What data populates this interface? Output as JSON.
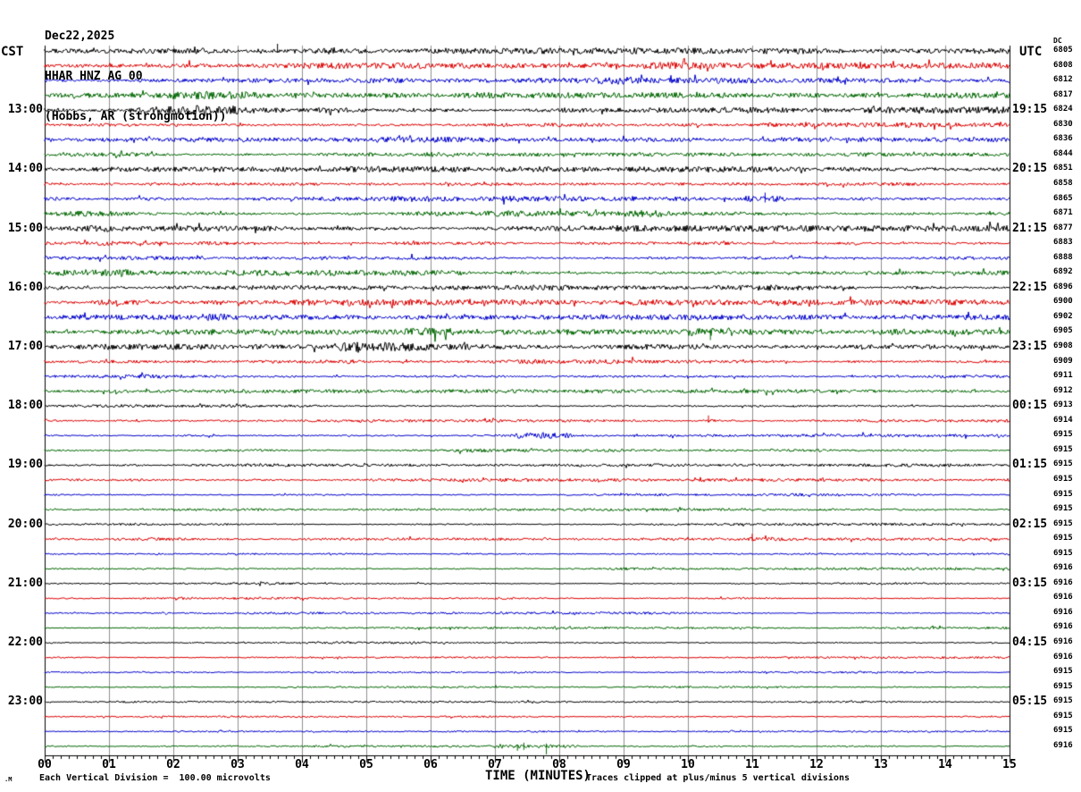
{
  "header": {
    "date": "Dec22,2025",
    "station": "HHAR HNZ AG 00",
    "location": "(Hobbs, AR (strongmotion))"
  },
  "axes": {
    "left_label": "CST",
    "right_label": "UTC",
    "dc_label": "DC",
    "left_hours": [
      "13:00",
      "14:00",
      "15:00",
      "16:00",
      "17:00",
      "18:00",
      "19:00",
      "20:00",
      "21:00",
      "22:00",
      "23:00"
    ],
    "right_times": [
      "19:15",
      "20:15",
      "21:15",
      "22:15",
      "23:15",
      "00:15",
      "01:15",
      "02:15",
      "03:15",
      "04:15",
      "05:15"
    ],
    "x_ticks": [
      "00",
      "01",
      "02",
      "03",
      "04",
      "05",
      "06",
      "07",
      "08",
      "09",
      "10",
      "11",
      "12",
      "13",
      "14",
      "15"
    ],
    "x_title": "TIME (MINUTES)"
  },
  "footer": {
    "scale_note": "Each Vertical Division =  100.00 microvolts",
    "clip_note": "Traces clipped at plus/minus 5 vertical divisions",
    "watermark": ".M"
  },
  "colors": {
    "black": "#000000",
    "red": "#dd0000",
    "blue": "#0000cc",
    "green": "#006600",
    "grid": "#909090",
    "frame": "#000000"
  },
  "chart_data": {
    "type": "line",
    "subtype": "seismogram-helicorder",
    "x_unit": "minutes",
    "x_range": [
      0,
      15
    ],
    "minutes_per_row": 15,
    "rows_per_hour": 4,
    "first_row_cst": "12:00",
    "grid": "vertical-every-minute",
    "rows": [
      {
        "cst": "12:00",
        "color": "black",
        "count": 6805,
        "noise": 2.0,
        "events": [
          [
            3.3,
            4.5,
            1.6
          ]
        ],
        "spikes": [
          {
            "m": 3.62,
            "up": 8,
            "down": 2
          }
        ]
      },
      {
        "cst": "12:15",
        "color": "red",
        "count": 6808,
        "noise": 1.9,
        "events": [
          [
            1.5,
            2.6,
            1.3
          ],
          [
            9.3,
            10.2,
            1.3
          ]
        ],
        "spikes": []
      },
      {
        "cst": "12:30",
        "color": "blue",
        "count": 6812,
        "noise": 1.8,
        "events": [
          [
            0.8,
            2.2,
            1.3
          ],
          [
            8.6,
            9.2,
            1.4
          ]
        ],
        "spikes": []
      },
      {
        "cst": "12:45",
        "color": "green",
        "count": 6817,
        "noise": 1.9,
        "events": [
          [
            2.0,
            3.4,
            1.4
          ]
        ],
        "spikes": []
      },
      {
        "cst": "13:00",
        "color": "black",
        "count": 6824,
        "noise": 2.2,
        "events": [
          [
            1.3,
            3.0,
            2.0
          ]
        ],
        "spikes": []
      },
      {
        "cst": "13:15",
        "color": "red",
        "count": 6830,
        "noise": 1.9,
        "events": [],
        "spikes": []
      },
      {
        "cst": "13:30",
        "color": "blue",
        "count": 6836,
        "noise": 1.8,
        "events": [
          [
            11.2,
            11.8,
            1.3
          ]
        ],
        "spikes": []
      },
      {
        "cst": "13:45",
        "color": "green",
        "count": 6844,
        "noise": 1.9,
        "events": [
          [
            5.9,
            6.4,
            1.5
          ]
        ],
        "spikes": []
      },
      {
        "cst": "14:00",
        "color": "black",
        "count": 6851,
        "noise": 1.9,
        "events": [],
        "spikes": []
      },
      {
        "cst": "14:15",
        "color": "red",
        "count": 6858,
        "noise": 1.9,
        "events": [
          [
            6.3,
            6.8,
            1.3
          ]
        ],
        "spikes": []
      },
      {
        "cst": "14:30",
        "color": "blue",
        "count": 6865,
        "noise": 1.8,
        "events": [
          [
            10.9,
            11.5,
            1.8
          ]
        ],
        "spikes": [
          {
            "m": 11.2,
            "up": 7,
            "down": 4
          }
        ]
      },
      {
        "cst": "14:45",
        "color": "green",
        "count": 6871,
        "noise": 2.0,
        "events": [
          [
            0.1,
            1.2,
            1.4
          ],
          [
            9.0,
            9.6,
            1.3
          ]
        ],
        "spikes": []
      },
      {
        "cst": "15:00",
        "color": "black",
        "count": 6877,
        "noise": 2.0,
        "events": [
          [
            0.2,
            1.1,
            1.4
          ]
        ],
        "spikes": []
      },
      {
        "cst": "15:15",
        "color": "red",
        "count": 6883,
        "noise": 1.8,
        "events": [],
        "spikes": []
      },
      {
        "cst": "15:30",
        "color": "blue",
        "count": 6888,
        "noise": 1.7,
        "events": [],
        "spikes": []
      },
      {
        "cst": "15:45",
        "color": "green",
        "count": 6892,
        "noise": 1.9,
        "events": [
          [
            0.2,
            1.3,
            1.5
          ]
        ],
        "spikes": []
      },
      {
        "cst": "16:00",
        "color": "black",
        "count": 6896,
        "noise": 1.8,
        "events": [],
        "spikes": []
      },
      {
        "cst": "16:15",
        "color": "red",
        "count": 6900,
        "noise": 1.9,
        "events": [
          [
            0.7,
            1.6,
            1.7
          ]
        ],
        "spikes": []
      },
      {
        "cst": "16:30",
        "color": "blue",
        "count": 6902,
        "noise": 1.7,
        "events": [
          [
            2.4,
            2.9,
            1.3
          ]
        ],
        "spikes": []
      },
      {
        "cst": "16:45",
        "color": "green",
        "count": 6905,
        "noise": 1.8,
        "events": [
          [
            5.6,
            6.4,
            1.7
          ],
          [
            9.9,
            10.7,
            1.9
          ],
          [
            12.8,
            13.4,
            1.6
          ]
        ],
        "spikes": [
          {
            "m": 10.35,
            "up": 3,
            "down": 9
          }
        ]
      },
      {
        "cst": "17:00",
        "color": "black",
        "count": 6908,
        "noise": 1.9,
        "events": [
          [
            4.5,
            6.6,
            1.6
          ]
        ],
        "spikes": []
      },
      {
        "cst": "17:15",
        "color": "red",
        "count": 6909,
        "noise": 1.5,
        "events": [
          [
            4.7,
            5.1,
            1.5
          ],
          [
            13.6,
            14.2,
            1.4
          ]
        ],
        "spikes": []
      },
      {
        "cst": "17:30",
        "color": "blue",
        "count": 6911,
        "noise": 1.3,
        "events": [],
        "spikes": []
      },
      {
        "cst": "17:45",
        "color": "green",
        "count": 6912,
        "noise": 1.2,
        "events": [],
        "spikes": []
      },
      {
        "cst": "18:00",
        "color": "black",
        "count": 6913,
        "noise": 1.2,
        "events": [],
        "spikes": []
      },
      {
        "cst": "18:15",
        "color": "red",
        "count": 6914,
        "noise": 1.2,
        "events": [
          [
            10.2,
            10.5,
            2.4
          ]
        ],
        "spikes": [
          {
            "m": 10.32,
            "up": 6,
            "down": 2
          }
        ]
      },
      {
        "cst": "18:30",
        "color": "blue",
        "count": 6915,
        "noise": 1.1,
        "events": [
          [
            7.3,
            8.2,
            2.2
          ]
        ],
        "spikes": []
      },
      {
        "cst": "18:45",
        "color": "green",
        "count": 6915,
        "noise": 1.2,
        "events": [],
        "spikes": []
      },
      {
        "cst": "19:00",
        "color": "black",
        "count": 6915,
        "noise": 1.0,
        "events": [],
        "spikes": []
      },
      {
        "cst": "19:15",
        "color": "red",
        "count": 6915,
        "noise": 1.0,
        "events": [],
        "spikes": []
      },
      {
        "cst": "19:30",
        "color": "blue",
        "count": 6915,
        "noise": 0.95,
        "events": [],
        "spikes": []
      },
      {
        "cst": "19:45",
        "color": "green",
        "count": 6915,
        "noise": 0.9,
        "events": [],
        "spikes": []
      },
      {
        "cst": "20:00",
        "color": "black",
        "count": 6915,
        "noise": 0.9,
        "events": [],
        "spikes": []
      },
      {
        "cst": "20:15",
        "color": "red",
        "count": 6915,
        "noise": 0.85,
        "events": [
          [
            10.9,
            11.9,
            1.6
          ]
        ],
        "spikes": [
          {
            "m": 11.0,
            "up": 6,
            "down": 2
          }
        ]
      },
      {
        "cst": "20:30",
        "color": "blue",
        "count": 6915,
        "noise": 0.85,
        "events": [
          [
            12.6,
            13.1,
            1.4
          ]
        ],
        "spikes": []
      },
      {
        "cst": "20:45",
        "color": "green",
        "count": 6916,
        "noise": 0.8,
        "events": [],
        "spikes": []
      },
      {
        "cst": "21:00",
        "color": "black",
        "count": 6916,
        "noise": 0.8,
        "events": [],
        "spikes": []
      },
      {
        "cst": "21:15",
        "color": "red",
        "count": 6916,
        "noise": 0.75,
        "events": [
          [
            1.8,
            2.3,
            1.4
          ],
          [
            7.0,
            7.3,
            1.4
          ]
        ],
        "spikes": []
      },
      {
        "cst": "21:30",
        "color": "blue",
        "count": 6916,
        "noise": 0.75,
        "events": [],
        "spikes": []
      },
      {
        "cst": "21:45",
        "color": "green",
        "count": 6916,
        "noise": 0.7,
        "events": [],
        "spikes": []
      },
      {
        "cst": "22:00",
        "color": "black",
        "count": 6916,
        "noise": 0.7,
        "events": [],
        "spikes": []
      },
      {
        "cst": "22:15",
        "color": "red",
        "count": 6916,
        "noise": 0.65,
        "events": [],
        "spikes": []
      },
      {
        "cst": "22:30",
        "color": "blue",
        "count": 6915,
        "noise": 0.65,
        "events": [],
        "spikes": []
      },
      {
        "cst": "22:45",
        "color": "green",
        "count": 6915,
        "noise": 0.6,
        "events": [],
        "spikes": []
      },
      {
        "cst": "23:00",
        "color": "black",
        "count": 6915,
        "noise": 0.6,
        "events": [],
        "spikes": []
      },
      {
        "cst": "23:15",
        "color": "red",
        "count": 6915,
        "noise": 0.6,
        "events": [],
        "spikes": []
      },
      {
        "cst": "23:30",
        "color": "blue",
        "count": 6915,
        "noise": 0.55,
        "events": [],
        "spikes": []
      },
      {
        "cst": "23:45",
        "color": "green",
        "count": 6916,
        "noise": 0.7,
        "events": [
          [
            7.0,
            8.3,
            2.4
          ],
          [
            12.1,
            13.3,
            2.2
          ]
        ],
        "spikes": [
          {
            "m": 7.8,
            "up": 3,
            "down": 9
          },
          {
            "m": 7.45,
            "up": 4,
            "down": 4
          },
          {
            "m": 7.35,
            "up": 2,
            "down": 5
          }
        ]
      }
    ]
  }
}
